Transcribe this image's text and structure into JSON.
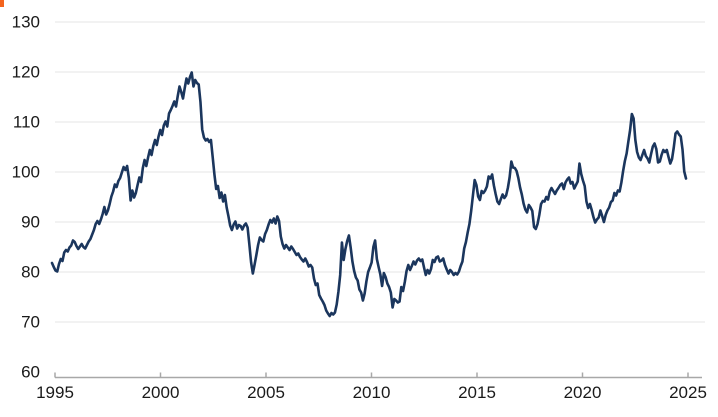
{
  "meta": {
    "description": "Line chart of a U.S. dollar index, monthly, 1995 to 2025",
    "artifact_color": "#f4641e"
  },
  "chart_data": {
    "type": "line",
    "title": "",
    "xlabel": "",
    "ylabel": "",
    "x_monthly_start": "1995-01",
    "x_monthly_end": "2025-04",
    "x_tick_labels": [
      "1995",
      "2000",
      "2005",
      "2010",
      "2015",
      "2020",
      "2025"
    ],
    "x_tick_years": [
      1995,
      2000,
      2005,
      2010,
      2015,
      2020,
      2025
    ],
    "y_tick_labels": [
      "60",
      "70",
      "80",
      "90",
      "100",
      "110",
      "120",
      "130"
    ],
    "y_tick_values": [
      60,
      70,
      80,
      90,
      100,
      110,
      120,
      130
    ],
    "ylim": [
      60,
      130
    ],
    "grid": "horizontal-only",
    "legend": "none",
    "line_color": "#1b365d",
    "grid_color": "#e5e5e5",
    "axis_color": "#a8a8a8",
    "label_color": "#1a1a1a",
    "series_name": "dollar-index",
    "values": [
      81.8,
      81.0,
      80.3,
      80.1,
      81.6,
      82.6,
      82.2,
      83.9,
      84.4,
      84.1,
      84.9,
      85.3,
      86.3,
      86.0,
      85.2,
      84.6,
      85.1,
      85.6,
      85.0,
      84.7,
      85.4,
      86.1,
      86.6,
      87.5,
      88.4,
      89.6,
      90.2,
      89.6,
      90.5,
      91.6,
      93.0,
      91.5,
      92.3,
      93.6,
      95.1,
      96.1,
      97.5,
      97.0,
      98.2,
      98.8,
      99.9,
      101.0,
      100.4,
      101.2,
      98.8,
      94.3,
      96.3,
      94.9,
      95.8,
      97.4,
      98.9,
      98.0,
      100.8,
      102.4,
      101.2,
      102.9,
      104.4,
      103.4,
      105.2,
      106.4,
      105.4,
      107.1,
      108.4,
      107.4,
      109.3,
      110.1,
      109.1,
      111.7,
      112.4,
      113.2,
      114.1,
      113.1,
      115.2,
      117.1,
      116.0,
      114.7,
      116.8,
      118.7,
      117.7,
      119.0,
      119.9,
      117.1,
      118.4,
      117.8,
      117.5,
      114.0,
      108.5,
      106.9,
      106.3,
      106.6,
      106.0,
      106.4,
      103.0,
      99.5,
      96.6,
      97.2,
      94.8,
      95.9,
      94.1,
      95.4,
      92.9,
      91.2,
      89.3,
      88.4,
      89.5,
      90.1,
      88.7,
      89.4,
      89.2,
      88.5,
      89.3,
      89.7,
      88.9,
      85.5,
      81.9,
      79.7,
      81.5,
      83.4,
      85.4,
      86.9,
      86.4,
      86.1,
      87.6,
      88.4,
      89.5,
      90.4,
      89.9,
      90.7,
      89.7,
      91.1,
      90.2,
      87.1,
      85.6,
      84.7,
      85.4,
      84.9,
      84.4,
      85.1,
      84.6,
      84.0,
      83.4,
      83.7,
      83.0,
      82.5,
      82.1,
      82.7,
      82.0,
      81.1,
      81.4,
      80.9,
      78.7,
      77.4,
      77.7,
      75.4,
      74.7,
      74.1,
      73.4,
      72.3,
      71.7,
      71.2,
      71.8,
      71.5,
      71.9,
      73.5,
      76.1,
      79.4,
      85.9,
      82.4,
      84.6,
      86.2,
      87.3,
      84.9,
      82.1,
      80.2,
      78.9,
      78.3,
      76.5,
      75.9,
      74.3,
      75.7,
      78.1,
      80.0,
      80.9,
      81.9,
      85.0,
      86.3,
      82.6,
      81.0,
      79.5,
      77.2,
      79.8,
      79.0,
      77.7,
      77.0,
      75.9,
      72.9,
      74.6,
      74.3,
      73.9,
      74.1,
      77.0,
      76.2,
      78.0,
      80.2,
      81.4,
      80.4,
      81.2,
      82.1,
      81.5,
      82.3,
      82.7,
      82.2,
      82.5,
      80.9,
      79.4,
      80.4,
      79.7,
      80.6,
      82.4,
      82.0,
      82.9,
      83.1,
      82.1,
      82.3,
      82.7,
      81.4,
      80.5,
      79.7,
      80.4,
      80.0,
      79.4,
      79.8,
      79.5,
      80.1,
      81.2,
      82.1,
      84.7,
      86.0,
      87.9,
      89.6,
      92.2,
      95.3,
      98.4,
      97.4,
      95.1,
      94.4,
      96.2,
      95.8,
      96.3,
      97.1,
      99.1,
      98.7,
      99.5,
      97.3,
      95.6,
      94.1,
      93.6,
      94.6,
      95.5,
      94.8,
      95.3,
      96.8,
      98.9,
      102.1,
      100.9,
      100.8,
      100.2,
      98.8,
      96.9,
      95.5,
      93.7,
      92.5,
      91.9,
      93.4,
      92.9,
      92.2,
      89.0,
      88.6,
      89.6,
      91.4,
      93.6,
      94.2,
      94.1,
      95.0,
      94.5,
      96.1,
      96.8,
      96.2,
      95.6,
      96.3,
      96.8,
      97.4,
      97.7,
      96.6,
      97.9,
      98.5,
      98.9,
      97.7,
      98.0,
      96.7,
      97.4,
      98.1,
      101.7,
      99.6,
      98.3,
      97.2,
      94.1,
      92.8,
      93.6,
      92.4,
      91.0,
      89.9,
      90.5,
      90.9,
      92.3,
      91.2,
      90.0,
      91.4,
      92.3,
      92.9,
      94.0,
      94.3,
      95.8,
      95.3,
      96.3,
      96.1,
      97.9,
      100.2,
      102.2,
      103.7,
      106.1,
      108.4,
      111.6,
      110.7,
      106.4,
      104.0,
      102.9,
      102.4,
      103.4,
      104.4,
      103.2,
      102.7,
      101.9,
      103.6,
      105.1,
      105.7,
      104.6,
      101.9,
      102.1,
      103.4,
      104.4,
      104.0,
      104.4,
      103.0,
      101.7,
      102.6,
      104.9,
      107.7,
      108.1,
      107.5,
      107.1,
      104.5,
      100.1,
      98.7
    ]
  }
}
